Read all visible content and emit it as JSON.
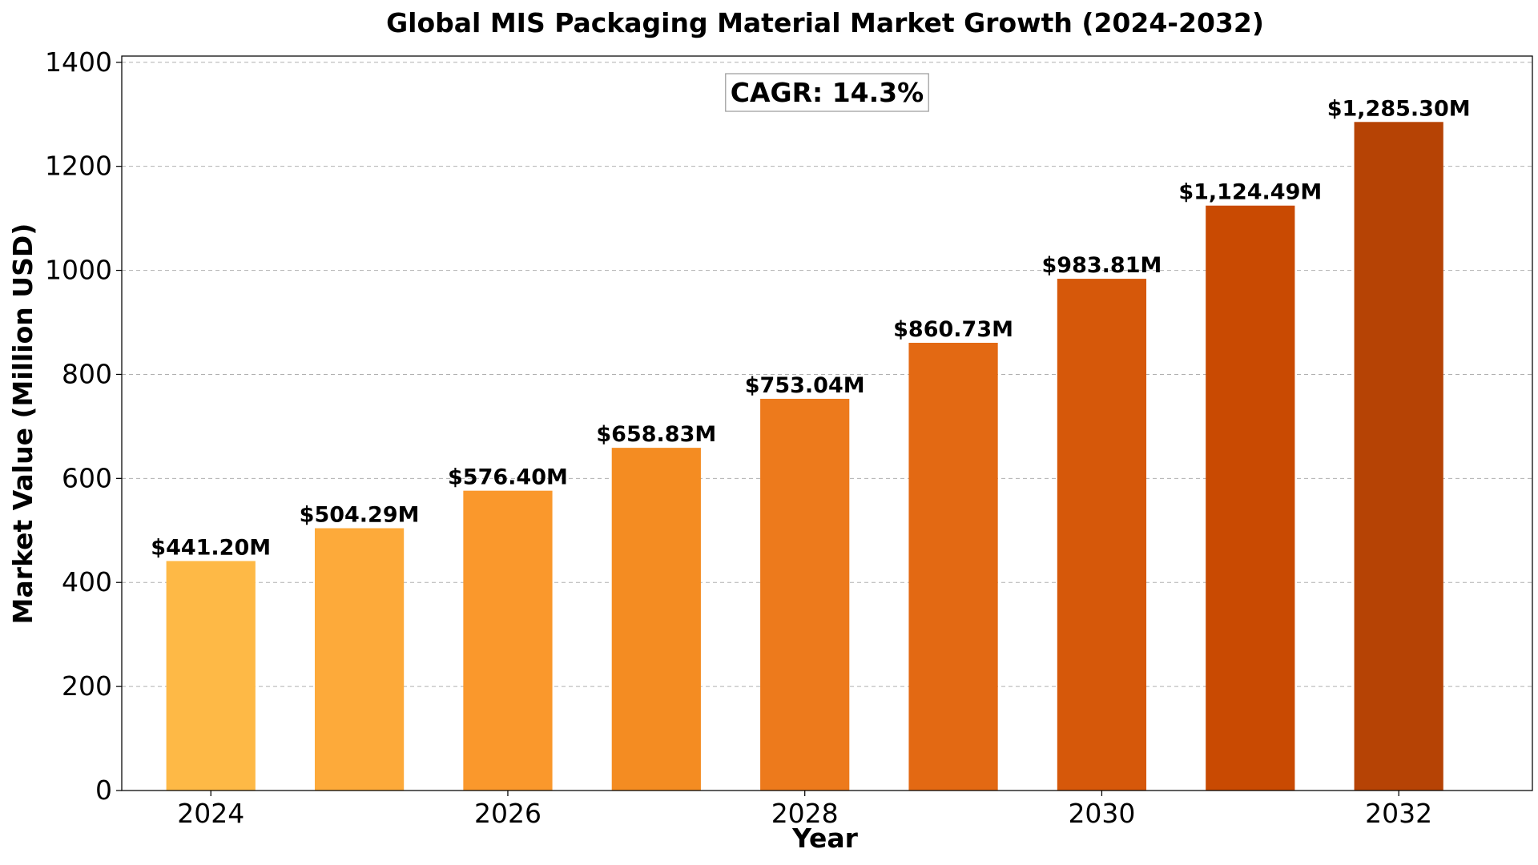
{
  "chart_data": {
    "type": "bar",
    "title": "Global MIS Packaging Material Market Growth (2024-2032)",
    "xlabel": "Year",
    "ylabel": "Market Value (Million USD)",
    "categories": [
      2024,
      2025,
      2026,
      2027,
      2028,
      2029,
      2030,
      2031,
      2032
    ],
    "values": [
      441.2,
      504.29,
      576.4,
      658.83,
      753.04,
      860.73,
      983.81,
      1124.49,
      1285.3
    ],
    "data_labels": [
      "$441.20M",
      "$504.29M",
      "$576.40M",
      "$658.83M",
      "$753.04M",
      "$860.73M",
      "$983.81M",
      "$1,124.49M",
      "$1,285.30M"
    ],
    "bar_colors": [
      "#feb946",
      "#fdaa3a",
      "#fa982c",
      "#f48c22",
      "#ed7a1c",
      "#e36913",
      "#d6580a",
      "#c94a02",
      "#b64305"
    ],
    "xticks": [
      2024,
      2026,
      2028,
      2030,
      2032
    ],
    "yticks": [
      0,
      200,
      400,
      600,
      800,
      1000,
      1200,
      1400
    ],
    "xlim": [
      2023.4,
      2032.9
    ],
    "ylim": [
      0,
      1412
    ],
    "grid": "y-dashed",
    "annotation": "CAGR: 14.3%"
  }
}
